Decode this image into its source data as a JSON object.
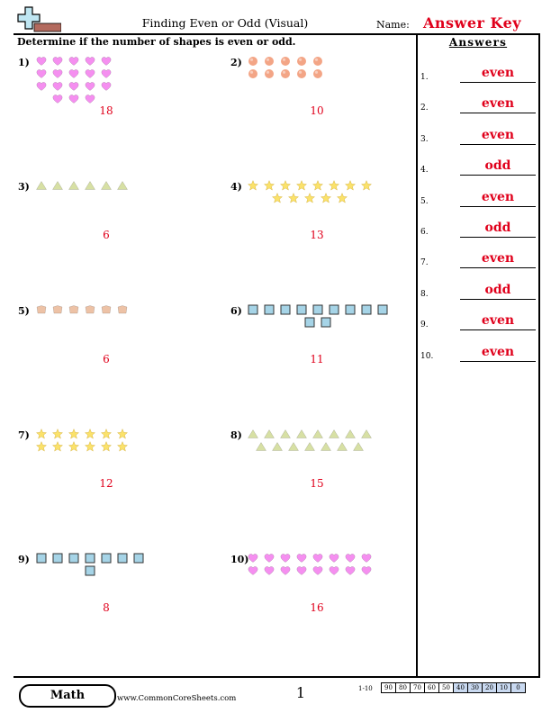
{
  "header": {
    "title": "Finding Even or Odd (Visual)",
    "name_label": "Name:",
    "answer_key": "Answer Key"
  },
  "instructions": "Determine if the number of shapes is even or odd.",
  "answers_header": "Answers",
  "answers": [
    {
      "num": "1.",
      "value": "even"
    },
    {
      "num": "2.",
      "value": "even"
    },
    {
      "num": "3.",
      "value": "even"
    },
    {
      "num": "4.",
      "value": "odd"
    },
    {
      "num": "5.",
      "value": "even"
    },
    {
      "num": "6.",
      "value": "odd"
    },
    {
      "num": "7.",
      "value": "even"
    },
    {
      "num": "8.",
      "value": "odd"
    },
    {
      "num": "9.",
      "value": "even"
    },
    {
      "num": "10.",
      "value": "even"
    }
  ],
  "problems": [
    {
      "label": "1)",
      "shape": "heart",
      "color": "#f58ff0",
      "rows": [
        5,
        5,
        5,
        3
      ],
      "count": "18"
    },
    {
      "label": "2)",
      "shape": "circle",
      "color": "#f3a586",
      "rows": [
        5,
        5
      ],
      "count": "10"
    },
    {
      "label": "3)",
      "shape": "triangle",
      "color": "#d7e0a4",
      "rows": [
        6
      ],
      "count": "6"
    },
    {
      "label": "4)",
      "shape": "star",
      "color": "#fbe26a",
      "rows": [
        8,
        5
      ],
      "count": "13"
    },
    {
      "label": "5)",
      "shape": "pentagon",
      "color": "#edc2a6",
      "rows": [
        6
      ],
      "count": "6"
    },
    {
      "label": "6)",
      "shape": "square",
      "color": "#a6d4e7",
      "rows": [
        9,
        2
      ],
      "count": "11"
    },
    {
      "label": "7)",
      "shape": "star",
      "color": "#fbe26a",
      "rows": [
        6,
        6
      ],
      "count": "12"
    },
    {
      "label": "8)",
      "shape": "triangle",
      "color": "#d7e0a4",
      "rows": [
        8,
        7
      ],
      "count": "15"
    },
    {
      "label": "9)",
      "shape": "square",
      "color": "#a6d4e7",
      "rows": [
        7,
        1
      ],
      "count": "8"
    },
    {
      "label": "10)",
      "shape": "heart",
      "color": "#f58ff0",
      "rows": [
        8,
        8
      ],
      "count": "16"
    }
  ],
  "footer": {
    "subject": "Math",
    "site": "www.CommonCoreSheets.com",
    "page": "1",
    "score_range": "1-10",
    "scores": [
      "90",
      "80",
      "70",
      "60",
      "50",
      "40",
      "30",
      "20",
      "10",
      "0"
    ]
  },
  "logo": "plus-and-pencil-logo"
}
